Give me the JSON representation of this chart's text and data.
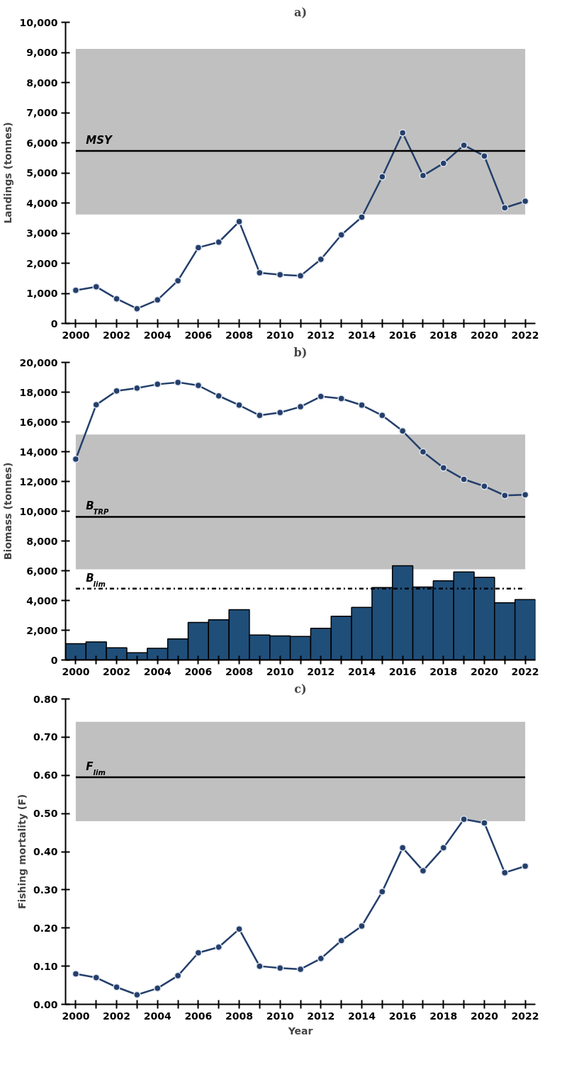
{
  "chart_data": [
    {
      "type": "line",
      "title": "a)",
      "ylabel": "Landings (tonnes)",
      "x": [
        2000,
        2001,
        2002,
        2003,
        2004,
        2005,
        2006,
        2007,
        2008,
        2009,
        2010,
        2011,
        2012,
        2013,
        2014,
        2015,
        2016,
        2017,
        2018,
        2019,
        2020,
        2021,
        2022
      ],
      "series": [
        {
          "color": "#243f6b",
          "values": [
            1100,
            1220,
            820,
            490,
            780,
            1420,
            2520,
            2700,
            3380,
            1680,
            1620,
            1580,
            2130,
            2940,
            3530,
            4870,
            6330,
            4910,
            5320,
            5920,
            5560,
            3840,
            4060
          ]
        }
      ],
      "xlim": [
        1999.5,
        2022.5
      ],
      "ylim": [
        0,
        10000
      ],
      "xticks": [
        2000,
        {
          "value": 2001,
          "label": null
        },
        2002,
        {
          "value": 2003,
          "label": null
        },
        2004,
        {
          "value": 2005,
          "label": null
        },
        2006,
        {
          "value": 2007,
          "label": null
        },
        2008,
        {
          "value": 2009,
          "label": null
        },
        2010,
        {
          "value": 2011,
          "label": null
        },
        2012,
        {
          "value": 2013,
          "label": null
        },
        2014,
        {
          "value": 2015,
          "label": null
        },
        2016,
        {
          "value": 2017,
          "label": null
        },
        2018,
        {
          "value": 2019,
          "label": null
        },
        2020,
        {
          "value": 2021,
          "label": null
        },
        2022
      ],
      "yticks": [
        0,
        {
          "value": 1000,
          "label": "1,000"
        },
        {
          "value": 2000,
          "label": "2,000"
        },
        {
          "value": 3000,
          "label": "3,000"
        },
        {
          "value": 4000,
          "label": "4,000"
        },
        {
          "value": 5000,
          "label": "5,000"
        },
        {
          "value": 6000,
          "label": "6,000"
        },
        {
          "value": 7000,
          "label": "7,000"
        },
        {
          "value": 8000,
          "label": "8,000"
        },
        {
          "value": 9000,
          "label": "9,000"
        },
        {
          "value": 10000,
          "label": "10,000"
        }
      ],
      "bands": [
        {
          "axis": "y",
          "from": 3620,
          "to": 9120,
          "color": "#c0c0c0"
        }
      ],
      "ref_lines": [
        {
          "axis": "y",
          "value": 5730,
          "label": "MSY",
          "color": "#000000",
          "line_style": "solid"
        }
      ],
      "grid": false,
      "marker": "circle",
      "line_style": "solid"
    },
    {
      "type": "line",
      "title": "b)",
      "ylabel": "Biomass (tonnes)",
      "x": [
        2000,
        2001,
        2002,
        2003,
        2004,
        2005,
        2006,
        2007,
        2008,
        2009,
        2010,
        2011,
        2012,
        2013,
        2014,
        2015,
        2016,
        2017,
        2018,
        2019,
        2020,
        2021,
        2022
      ],
      "series": [
        {
          "type": "bar",
          "color": "#1f4e79",
          "values": [
            1100,
            1220,
            820,
            490,
            780,
            1420,
            2520,
            2700,
            3380,
            1680,
            1620,
            1580,
            2130,
            2940,
            3530,
            4870,
            6330,
            4910,
            5320,
            5920,
            5560,
            3840,
            4060
          ]
        },
        {
          "color": "#243f6b",
          "values": [
            13500,
            17150,
            18080,
            18270,
            18530,
            18660,
            18450,
            17750,
            17130,
            16440,
            16630,
            17020,
            17710,
            17570,
            17130,
            16440,
            15390,
            13990,
            12920,
            12140,
            11680,
            11060,
            11110
          ]
        }
      ],
      "xlim": [
        1999.5,
        2022.5
      ],
      "ylim": [
        0,
        20000
      ],
      "xticks": [
        2000,
        {
          "value": 2001,
          "label": null
        },
        2002,
        {
          "value": 2003,
          "label": null
        },
        2004,
        {
          "value": 2005,
          "label": null
        },
        2006,
        {
          "value": 2007,
          "label": null
        },
        2008,
        {
          "value": 2009,
          "label": null
        },
        2010,
        {
          "value": 2011,
          "label": null
        },
        2012,
        {
          "value": 2013,
          "label": null
        },
        2014,
        {
          "value": 2015,
          "label": null
        },
        2016,
        {
          "value": 2017,
          "label": null
        },
        2018,
        {
          "value": 2019,
          "label": null
        },
        2020,
        {
          "value": 2021,
          "label": null
        },
        2022
      ],
      "yticks": [
        0,
        {
          "value": 2000,
          "label": "2,000"
        },
        {
          "value": 4000,
          "label": "4,000"
        },
        {
          "value": 6000,
          "label": "6,000"
        },
        {
          "value": 8000,
          "label": "8,000"
        },
        {
          "value": 10000,
          "label": "10,000"
        },
        {
          "value": 12000,
          "label": "12,000"
        },
        {
          "value": 14000,
          "label": "14,000"
        },
        {
          "value": 16000,
          "label": "16,000"
        },
        {
          "value": 18000,
          "label": "18,000"
        },
        {
          "value": 20000,
          "label": "20,000"
        }
      ],
      "bands": [
        {
          "axis": "y",
          "from": 6100,
          "to": 15150,
          "color": "#c0c0c0"
        }
      ],
      "ref_lines": [
        {
          "axis": "y",
          "value": 9620,
          "label": "B$_{TRP}$",
          "color": "#000000",
          "line_style": "solid"
        },
        {
          "axis": "y",
          "value": 4800,
          "label": "B$_{lim}$",
          "color": "#000000",
          "line_style": "dashdot"
        }
      ],
      "grid": false,
      "marker": "circle",
      "line_style": "solid"
    },
    {
      "type": "line",
      "title": "c)",
      "xlabel": "Year",
      "ylabel": "Fishing mortality (F)",
      "x": [
        2000,
        2001,
        2002,
        2003,
        2004,
        2005,
        2006,
        2007,
        2008,
        2009,
        2010,
        2011,
        2012,
        2013,
        2014,
        2015,
        2016,
        2017,
        2018,
        2019,
        2020,
        2021,
        2022
      ],
      "series": [
        {
          "color": "#243f6b",
          "values": [
            0.08,
            0.07,
            0.045,
            0.025,
            0.042,
            0.075,
            0.135,
            0.15,
            0.197,
            0.1,
            0.095,
            0.092,
            0.12,
            0.167,
            0.205,
            0.295,
            0.41,
            0.35,
            0.41,
            0.485,
            0.475,
            0.345,
            0.362
          ]
        }
      ],
      "xlim": [
        1999.5,
        2022.5
      ],
      "ylim": [
        0,
        0.8
      ],
      "xticks": [
        2000,
        {
          "value": 2001,
          "label": null
        },
        2002,
        {
          "value": 2003,
          "label": null
        },
        2004,
        {
          "value": 2005,
          "label": null
        },
        2006,
        {
          "value": 2007,
          "label": null
        },
        2008,
        {
          "value": 2009,
          "label": null
        },
        2010,
        {
          "value": 2011,
          "label": null
        },
        2012,
        {
          "value": 2013,
          "label": null
        },
        2014,
        {
          "value": 2015,
          "label": null
        },
        2016,
        {
          "value": 2017,
          "label": null
        },
        2018,
        {
          "value": 2019,
          "label": null
        },
        2020,
        {
          "value": 2021,
          "label": null
        },
        2022
      ],
      "yticks": [
        {
          "value": 0,
          "label": "0.00"
        },
        {
          "value": 0.1,
          "label": "0.10"
        },
        {
          "value": 0.2,
          "label": "0.20"
        },
        {
          "value": 0.3,
          "label": "0.30"
        },
        {
          "value": 0.4,
          "label": "0.40"
        },
        {
          "value": 0.5,
          "label": "0.50"
        },
        {
          "value": 0.6,
          "label": "0.60"
        },
        {
          "value": 0.7,
          "label": "0.70"
        },
        {
          "value": 0.8,
          "label": "0.80"
        }
      ],
      "bands": [
        {
          "axis": "y",
          "from": 0.48,
          "to": 0.74,
          "color": "#c0c0c0"
        }
      ],
      "ref_lines": [
        {
          "axis": "y",
          "value": 0.595,
          "label": "F$_{lim}$",
          "color": "#000000",
          "line_style": "solid"
        }
      ],
      "grid": false,
      "marker": "circle",
      "line_style": "solid"
    }
  ]
}
